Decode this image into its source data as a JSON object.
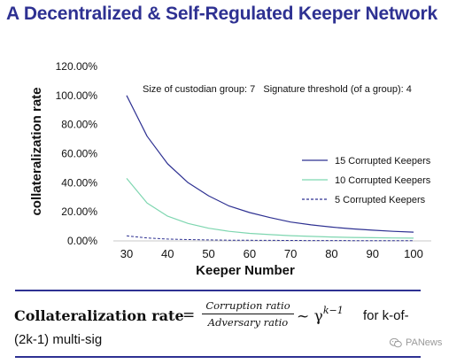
{
  "header": {
    "title": "A Decentralized & Self-Regulated Keeper Network"
  },
  "chart_data": {
    "type": "line",
    "xlabel": "Keeper Number",
    "ylabel": "collateralization rate",
    "xlim": [
      30,
      100
    ],
    "ylim": [
      0,
      120
    ],
    "x_ticks": [
      "30",
      "40",
      "50",
      "60",
      "70",
      "80",
      "90",
      "100"
    ],
    "y_ticks": [
      "0.00%",
      "20.00%",
      "40.00%",
      "60.00%",
      "80.00%",
      "100.00%",
      "120.00%"
    ],
    "annotation": "Size of custodian group: 7   Signature threshold (of a group): 4",
    "legend_position": "right",
    "grid": false,
    "x": [
      30,
      35,
      40,
      45,
      50,
      55,
      60,
      65,
      70,
      75,
      80,
      85,
      90,
      95,
      100
    ],
    "series": [
      {
        "name": "15 Corrupted Keepers",
        "color": "#2e3192",
        "dash": "solid",
        "values": [
          100,
          72,
          53,
          40,
          31,
          24,
          19.5,
          16,
          13,
          11,
          9.5,
          8.3,
          7.4,
          6.6,
          6
        ]
      },
      {
        "name": "10 Corrupted Keepers",
        "color": "#7ed6b0",
        "dash": "solid",
        "values": [
          43,
          26,
          17,
          12,
          8.7,
          6.6,
          5.2,
          4.3,
          3.6,
          3.1,
          2.7,
          2.4,
          2.2,
          2.0,
          1.9
        ]
      },
      {
        "name": "5 Corrupted Keepers",
        "color": "#2e3192",
        "dash": "dashed",
        "values": [
          3.5,
          2.0,
          1.3,
          0.9,
          0.7,
          0.5,
          0.4,
          0.35,
          0.3,
          0.25,
          0.22,
          0.2,
          0.18,
          0.16,
          0.15
        ]
      }
    ]
  },
  "formula": {
    "name": "Collateralization rate",
    "equals": "=",
    "numerator": "Corruption ratio",
    "denominator": "Adversary ratio",
    "approx": "~ γ",
    "exponent": "k−1",
    "tail": "for k-of-",
    "line2": "(2k-1) multi-sig"
  },
  "watermark": {
    "text": "PANews"
  }
}
